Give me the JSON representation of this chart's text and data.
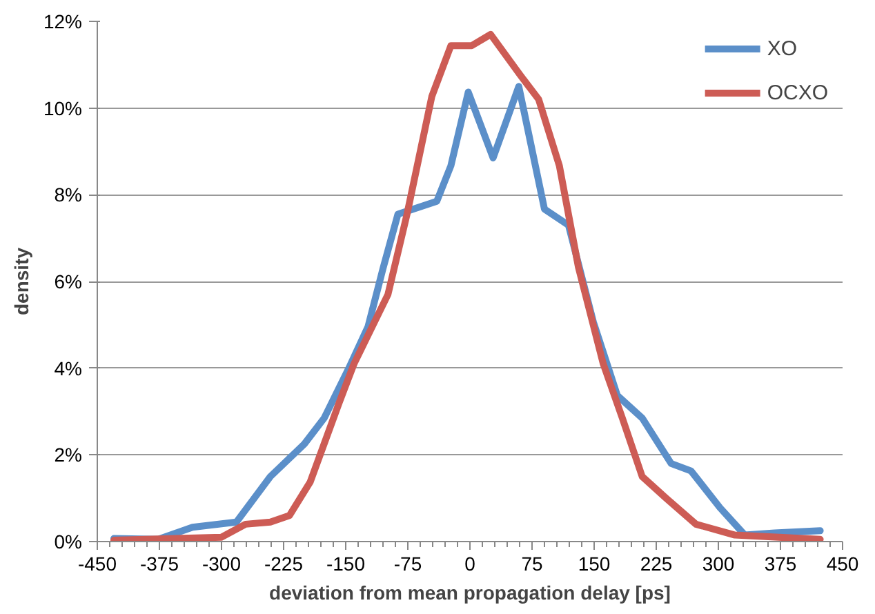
{
  "chart_data": {
    "type": "line",
    "xlabel": "deviation from mean propagation delay [ps]",
    "ylabel": "density",
    "xlim": [
      -450,
      450
    ],
    "xticks": [
      -450,
      -375,
      -300,
      -225,
      -150,
      -75,
      0,
      75,
      150,
      225,
      300,
      375,
      450
    ],
    "ylim": [
      0,
      12
    ],
    "yticks": [
      {
        "value": 0,
        "label": "0%"
      },
      {
        "value": 2,
        "label": "2%"
      },
      {
        "value": 4,
        "label": "4%"
      },
      {
        "value": 6,
        "label": "6%"
      },
      {
        "value": 8,
        "label": "8%"
      },
      {
        "value": 10,
        "label": "10%"
      },
      {
        "value": 12,
        "label": "12%"
      }
    ],
    "grid": "y",
    "legend": "top right",
    "marker": "none",
    "line_style": "solid",
    "series": [
      {
        "name": "XO",
        "color": "#5b8fc9",
        "x": [
          -430,
          -377,
          -335,
          -282,
          -241,
          -200,
          -176,
          -147,
          -123,
          -105,
          -87,
          -40,
          -23,
          -2,
          28,
          59,
          90,
          119,
          149,
          178,
          208,
          243,
          267,
          302,
          332,
          368,
          423
        ],
        "values": [
          0.07,
          0.05,
          0.33,
          0.45,
          1.5,
          2.25,
          2.85,
          3.97,
          4.96,
          6.3,
          7.55,
          7.85,
          8.67,
          10.37,
          8.85,
          10.5,
          7.67,
          7.3,
          5.07,
          3.37,
          2.85,
          1.8,
          1.63,
          0.78,
          0.15,
          0.2,
          0.25
        ]
      },
      {
        "name": "OCXO",
        "color": "#cd5c55",
        "x": [
          -430,
          -300,
          -271,
          -241,
          -218,
          -193,
          -158,
          -140,
          -99,
          -76,
          -46,
          -23,
          2,
          25,
          60,
          83,
          108,
          131,
          161,
          184,
          208,
          237,
          273,
          320,
          423
        ],
        "values": [
          0.03,
          0.1,
          0.4,
          0.45,
          0.6,
          1.37,
          3.2,
          4.1,
          5.7,
          7.55,
          10.27,
          11.44,
          11.44,
          11.7,
          10.78,
          10.2,
          8.67,
          6.33,
          4.1,
          2.85,
          1.5,
          1.0,
          0.4,
          0.15,
          0.05
        ]
      }
    ]
  }
}
